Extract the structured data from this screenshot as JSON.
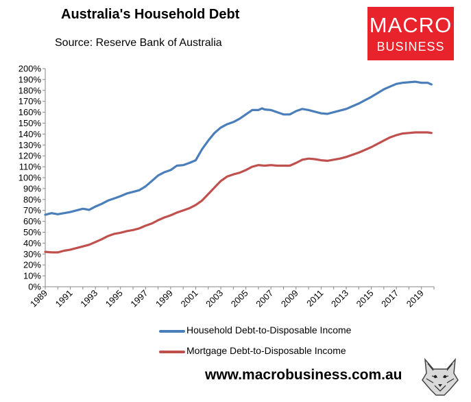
{
  "header": {
    "title": "Australia's Household Debt",
    "subtitle": "Source: Reserve Bank of Australia"
  },
  "logo": {
    "line1": "MACRO",
    "line2": "BUSINESS",
    "color": "#e8232b"
  },
  "footer": {
    "url": "www.macrobusiness.com.au"
  },
  "legend": [
    {
      "label": "Household Debt-to-Disposable Income",
      "color": "#4a7ebb"
    },
    {
      "label": "Mortgage Debt-to-Disposable Income",
      "color": "#c0504d"
    }
  ],
  "chart_data": {
    "type": "line",
    "x_ticks": [
      "1989",
      "1991",
      "1993",
      "1995",
      "1997",
      "1999",
      "2001",
      "2003",
      "2005",
      "2007",
      "2009",
      "2011",
      "2013",
      "2015",
      "2017",
      "2019"
    ],
    "y_ticks": [
      "0%",
      "10%",
      "20%",
      "30%",
      "40%",
      "50%",
      "60%",
      "70%",
      "80%",
      "90%",
      "100%",
      "110%",
      "120%",
      "130%",
      "140%",
      "150%",
      "160%",
      "170%",
      "180%",
      "190%",
      "200%"
    ],
    "xlim": [
      1989,
      2020
    ],
    "ylim": [
      0,
      200
    ],
    "grid": false,
    "legend_position": "bottom",
    "series": [
      {
        "name": "Household Debt-to-Disposable Income",
        "color": "#4a7ebb",
        "points": [
          [
            1989.0,
            66
          ],
          [
            1989.5,
            67.5
          ],
          [
            1990.0,
            66.5
          ],
          [
            1990.5,
            67.5
          ],
          [
            1991.0,
            68.5
          ],
          [
            1991.5,
            70
          ],
          [
            1992.0,
            71.5
          ],
          [
            1992.5,
            70.5
          ],
          [
            1993.0,
            73.5
          ],
          [
            1993.5,
            76
          ],
          [
            1994.0,
            79
          ],
          [
            1994.5,
            81
          ],
          [
            1995.0,
            83
          ],
          [
            1995.5,
            85.5
          ],
          [
            1996.0,
            87
          ],
          [
            1996.5,
            88.5
          ],
          [
            1997.0,
            92
          ],
          [
            1997.5,
            97
          ],
          [
            1998.0,
            102
          ],
          [
            1998.5,
            105
          ],
          [
            1999.0,
            107
          ],
          [
            1999.5,
            111
          ],
          [
            2000.0,
            111.5
          ],
          [
            2000.5,
            113.5
          ],
          [
            2001.0,
            116
          ],
          [
            2001.5,
            126
          ],
          [
            2002.0,
            134
          ],
          [
            2002.5,
            141
          ],
          [
            2003.0,
            146
          ],
          [
            2003.5,
            149
          ],
          [
            2004.0,
            151
          ],
          [
            2004.5,
            154
          ],
          [
            2005.0,
            158
          ],
          [
            2005.5,
            162
          ],
          [
            2006.0,
            162
          ],
          [
            2006.3,
            163.5
          ],
          [
            2006.5,
            162.5
          ],
          [
            2007.0,
            162
          ],
          [
            2007.5,
            160
          ],
          [
            2008.0,
            158
          ],
          [
            2008.5,
            158
          ],
          [
            2009.0,
            161
          ],
          [
            2009.5,
            163
          ],
          [
            2010.0,
            162
          ],
          [
            2010.5,
            160.5
          ],
          [
            2011.0,
            159
          ],
          [
            2011.5,
            158.5
          ],
          [
            2012.0,
            160
          ],
          [
            2012.5,
            161.5
          ],
          [
            2013.0,
            163
          ],
          [
            2013.5,
            165.5
          ],
          [
            2014.0,
            168
          ],
          [
            2014.5,
            171
          ],
          [
            2015.0,
            174
          ],
          [
            2015.5,
            177.5
          ],
          [
            2016.0,
            181
          ],
          [
            2016.5,
            183.5
          ],
          [
            2017.0,
            186
          ],
          [
            2017.5,
            187
          ],
          [
            2018.0,
            187.5
          ],
          [
            2018.5,
            188
          ],
          [
            2019.0,
            187
          ],
          [
            2019.5,
            187
          ],
          [
            2019.8,
            185.5
          ]
        ]
      },
      {
        "name": "Mortgage Debt-to-Disposable Income",
        "color": "#c0504d",
        "points": [
          [
            1989.0,
            32
          ],
          [
            1989.5,
            31.5
          ],
          [
            1990.0,
            31.5
          ],
          [
            1990.5,
            33
          ],
          [
            1991.0,
            34
          ],
          [
            1991.5,
            35.5
          ],
          [
            1992.0,
            37
          ],
          [
            1992.5,
            38.5
          ],
          [
            1993.0,
            41
          ],
          [
            1993.5,
            43.5
          ],
          [
            1994.0,
            46.5
          ],
          [
            1994.5,
            48.5
          ],
          [
            1995.0,
            49.5
          ],
          [
            1995.5,
            51
          ],
          [
            1996.0,
            52
          ],
          [
            1996.5,
            53.5
          ],
          [
            1997.0,
            56
          ],
          [
            1997.5,
            58
          ],
          [
            1998.0,
            61
          ],
          [
            1998.5,
            63.5
          ],
          [
            1999.0,
            65.5
          ],
          [
            1999.5,
            68
          ],
          [
            2000.0,
            70
          ],
          [
            2000.5,
            72
          ],
          [
            2001.0,
            75
          ],
          [
            2001.5,
            79
          ],
          [
            2002.0,
            85
          ],
          [
            2002.5,
            91
          ],
          [
            2003.0,
            97
          ],
          [
            2003.5,
            101
          ],
          [
            2004.0,
            103
          ],
          [
            2004.5,
            104.5
          ],
          [
            2005.0,
            107
          ],
          [
            2005.5,
            110
          ],
          [
            2006.0,
            111.5
          ],
          [
            2006.5,
            111
          ],
          [
            2007.0,
            111.5
          ],
          [
            2007.5,
            111
          ],
          [
            2008.0,
            111
          ],
          [
            2008.5,
            111
          ],
          [
            2009.0,
            113.5
          ],
          [
            2009.5,
            116.5
          ],
          [
            2010.0,
            117.5
          ],
          [
            2010.5,
            117
          ],
          [
            2011.0,
            116
          ],
          [
            2011.5,
            115.5
          ],
          [
            2012.0,
            116.5
          ],
          [
            2012.5,
            117.5
          ],
          [
            2013.0,
            119
          ],
          [
            2013.5,
            121
          ],
          [
            2014.0,
            123
          ],
          [
            2014.5,
            125.5
          ],
          [
            2015.0,
            128
          ],
          [
            2015.5,
            131
          ],
          [
            2016.0,
            134
          ],
          [
            2016.5,
            137
          ],
          [
            2017.0,
            139
          ],
          [
            2017.5,
            140.5
          ],
          [
            2018.0,
            141
          ],
          [
            2018.5,
            141.5
          ],
          [
            2019.0,
            141.5
          ],
          [
            2019.5,
            141.5
          ],
          [
            2019.8,
            141
          ]
        ]
      }
    ]
  }
}
